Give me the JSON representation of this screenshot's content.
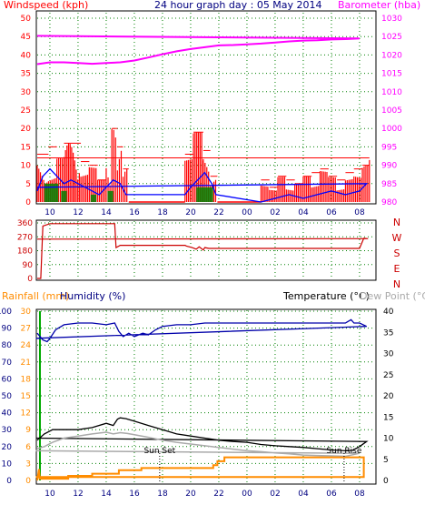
{
  "chart_data": [
    {
      "type": "bar",
      "panel": "wind-baro",
      "title": "24 hour graph day : 05 May 2014",
      "ylabel_left": "Windspeed (kph)",
      "ylabel_right": "Barometer (hba)",
      "x_ticks": [
        "10",
        "12",
        "14",
        "16",
        "18",
        "20",
        "22",
        "00",
        "02",
        "04",
        "06",
        "08"
      ],
      "y_left_ticks": [
        "0",
        "5",
        "10",
        "15",
        "20",
        "25",
        "30",
        "35",
        "40",
        "45",
        "50"
      ],
      "y_right_ticks": [
        "980",
        "985",
        "990",
        "995",
        "1000",
        "1005",
        "1010",
        "1015",
        "1020",
        "1025",
        "1030"
      ],
      "ylim_left": [
        0,
        50
      ],
      "ylim_right": [
        980,
        1030
      ],
      "grid": true,
      "colors": {
        "gust": "#ff0000",
        "avg": "#0000ff",
        "green": "#008000",
        "baro": "#ff00ff"
      },
      "gust_blocks": [
        [
          9.1,
          9.9,
          13
        ],
        [
          9.9,
          10.5,
          15
        ],
        [
          10.5,
          11.0,
          12
        ],
        [
          11.0,
          12.2,
          16
        ],
        [
          12.2,
          12.8,
          11
        ],
        [
          12.8,
          13.4,
          10
        ],
        [
          13.4,
          14.0,
          6
        ],
        [
          14.0,
          14.4,
          12
        ],
        [
          14.4,
          14.8,
          20
        ],
        [
          14.8,
          15.2,
          15
        ],
        [
          15.2,
          15.6,
          9
        ],
        [
          19.6,
          20.2,
          13
        ],
        [
          20.2,
          20.9,
          19
        ],
        [
          20.9,
          21.4,
          14
        ],
        [
          21.4,
          21.9,
          7
        ],
        [
          1.0,
          1.6,
          6
        ],
        [
          1.6,
          2.2,
          4
        ],
        [
          2.2,
          2.8,
          7
        ],
        [
          2.8,
          3.4,
          6
        ],
        [
          3.4,
          4.0,
          5
        ],
        [
          4.0,
          4.6,
          7
        ],
        [
          4.6,
          5.2,
          8
        ],
        [
          5.2,
          5.8,
          9
        ],
        [
          5.8,
          6.4,
          7
        ],
        [
          6.4,
          7.0,
          6
        ],
        [
          7.0,
          7.6,
          8
        ],
        [
          7.6,
          8.2,
          9
        ],
        [
          8.2,
          8.7,
          10
        ],
        [
          8.7,
          9.1,
          12
        ]
      ],
      "avg_x": [
        9.1,
        9.5,
        10.0,
        10.5,
        11.0,
        11.5,
        12.0,
        12.5,
        13.0,
        13.5,
        14.0,
        14.5,
        15.0,
        15.4,
        19.6,
        20.0,
        20.5,
        21.0,
        21.5,
        21.8,
        1.0,
        2.0,
        3.0,
        4.0,
        5.0,
        6.0,
        7.0,
        8.0,
        8.5,
        9.1
      ],
      "avg_y": [
        3,
        7,
        9,
        7,
        5,
        6,
        5,
        4,
        3,
        2,
        4,
        6,
        5,
        2,
        2,
        4,
        6,
        8,
        5,
        2,
        0,
        1,
        2,
        1,
        2,
        3,
        2,
        3,
        5,
        4
      ],
      "baro_x": [
        9.1,
        10,
        11,
        12,
        13,
        14,
        15,
        16,
        17,
        18,
        19,
        20,
        21,
        22,
        23,
        0,
        1,
        2,
        3,
        4,
        5,
        6,
        7,
        8,
        9.1
      ],
      "baro_y": [
        1017.5,
        1018,
        1018,
        1017.8,
        1017.6,
        1017.8,
        1018,
        1018.5,
        1019.3,
        1020.2,
        1021,
        1021.6,
        1022.1,
        1022.6,
        1022.7,
        1022.9,
        1023.1,
        1023.4,
        1023.7,
        1023.9,
        1024.0,
        1024.2,
        1024.3,
        1024.5,
        1025.2
      ]
    },
    {
      "type": "line",
      "panel": "wind-direction",
      "right_labels": [
        "N",
        "W",
        "S",
        "E",
        "N"
      ],
      "y_ticks": [
        "0",
        "90",
        "180",
        "270",
        "360"
      ],
      "ylim": [
        0,
        360
      ],
      "color": "#cc0000",
      "x": [
        9.1,
        9.35,
        9.5,
        10,
        11,
        12,
        13,
        14,
        14.6,
        14.7,
        15.0,
        16,
        17,
        18,
        19,
        19.6,
        19.7,
        20.1,
        20.4,
        20.6,
        20.9,
        21.0,
        21.3,
        21.6,
        22,
        1,
        4,
        7,
        8,
        8.3,
        8.6,
        9.1
      ],
      "y": [
        0,
        0,
        340,
        355,
        355,
        355,
        355,
        355,
        355,
        200,
        215,
        215,
        215,
        215,
        215,
        215,
        210,
        200,
        190,
        205,
        185,
        200,
        195,
        195,
        195,
        195,
        195,
        195,
        195,
        260,
        258,
        255
      ]
    },
    {
      "type": "line",
      "panel": "rain-hum-temp",
      "ylabel_left1": "Rainfall (mm)",
      "ylabel_left2": "Humidity (%)",
      "ylabel_right1": "Temperature (°C)",
      "ylabel_right2": "Dew Point (°C)",
      "hum_ticks": [
        "0",
        "10",
        "20",
        "30",
        "40",
        "50",
        "60",
        "70",
        "80",
        "90",
        "100"
      ],
      "rain_ticks": [
        "0",
        "3",
        "6",
        "9",
        "12",
        "15",
        "18",
        "21",
        "24",
        "27",
        "30"
      ],
      "temp_ticks": [
        "0",
        "5",
        "10",
        "15",
        "20",
        "25",
        "30",
        "35",
        "40"
      ],
      "x_ticks": [
        "10",
        "12",
        "14",
        "16",
        "18",
        "20",
        "22",
        "00",
        "02",
        "04",
        "06",
        "08"
      ],
      "annotations": [
        {
          "text": "Sun Set",
          "x": 17.8
        },
        {
          "text": "Sun Rise",
          "x": 6.9
        }
      ],
      "colors": {
        "humidity": "#0000aa",
        "temperature": "#000000",
        "dewpoint": "#aaaaaa",
        "rainfall": "#ff8c00",
        "rainaxis": "#00aa00"
      },
      "hum_x": [
        9.1,
        9.5,
        9.8,
        10,
        10.4,
        11,
        12,
        13,
        14,
        14.6,
        14.9,
        15.2,
        15.6,
        16,
        16.6,
        17,
        17.5,
        18,
        19,
        20,
        21,
        22,
        23,
        0,
        1,
        2,
        3,
        4,
        5,
        6,
        7,
        7.4,
        7.6,
        8,
        8.5,
        9.0
      ],
      "hum_y": [
        87,
        83,
        82,
        84,
        89,
        92,
        93,
        93,
        92,
        93,
        88,
        85,
        87,
        85,
        87,
        86,
        89,
        91,
        92,
        92,
        93,
        93,
        93,
        93,
        93,
        93,
        93,
        93,
        93,
        93,
        93,
        95,
        93,
        93,
        91,
        84
      ],
      "temp_x": [
        9.1,
        9.6,
        10.2,
        11,
        12,
        13,
        14,
        14.5,
        14.8,
        15,
        15.4,
        16,
        17,
        18,
        19,
        20,
        21,
        22,
        23,
        0,
        1,
        2,
        3,
        4,
        5,
        6,
        7,
        7.5,
        8,
        8.5,
        9.0
      ],
      "temp_y": [
        9.5,
        11,
        12,
        12,
        12,
        12.5,
        13.5,
        13,
        14.5,
        14.8,
        14.6,
        14,
        13,
        12,
        11,
        10.5,
        10,
        9.5,
        9.2,
        9,
        8.5,
        8.2,
        8,
        7.8,
        7.5,
        7.2,
        7.0,
        7.1,
        8,
        9.2,
        10
      ],
      "dew_x": [
        9.1,
        9.6,
        10.2,
        11,
        12,
        13,
        14,
        14.5,
        15,
        15.5,
        16,
        17,
        18,
        19,
        20,
        21,
        22,
        23,
        0,
        1,
        2,
        3,
        4,
        5,
        6,
        7,
        8,
        9.0
      ],
      "dew_y": [
        7.5,
        8,
        9,
        10,
        10.5,
        11,
        11.4,
        11,
        11.3,
        11.1,
        10.8,
        10.2,
        9.5,
        9,
        8.6,
        8.2,
        7.8,
        7.4,
        7,
        6.8,
        6.5,
        6.3,
        6.0,
        5.9,
        5.8,
        5.7,
        6.4,
        7
      ],
      "rain_x": [
        9.1,
        9.22,
        9.28,
        11.3,
        11.3,
        13.0,
        13.0,
        14.9,
        14.9,
        16.5,
        16.5,
        21.6,
        21.6,
        21.9,
        21.9,
        22.4,
        22.4,
        8.3,
        8.3,
        9.0
      ],
      "rain_y": [
        0,
        2,
        0.3,
        0.3,
        0.8,
        0.8,
        1.2,
        1.2,
        1.8,
        1.8,
        2.2,
        2.2,
        2.7,
        2.7,
        3.4,
        3.4,
        4.1,
        4.1,
        0.6,
        0.6
      ]
    }
  ]
}
